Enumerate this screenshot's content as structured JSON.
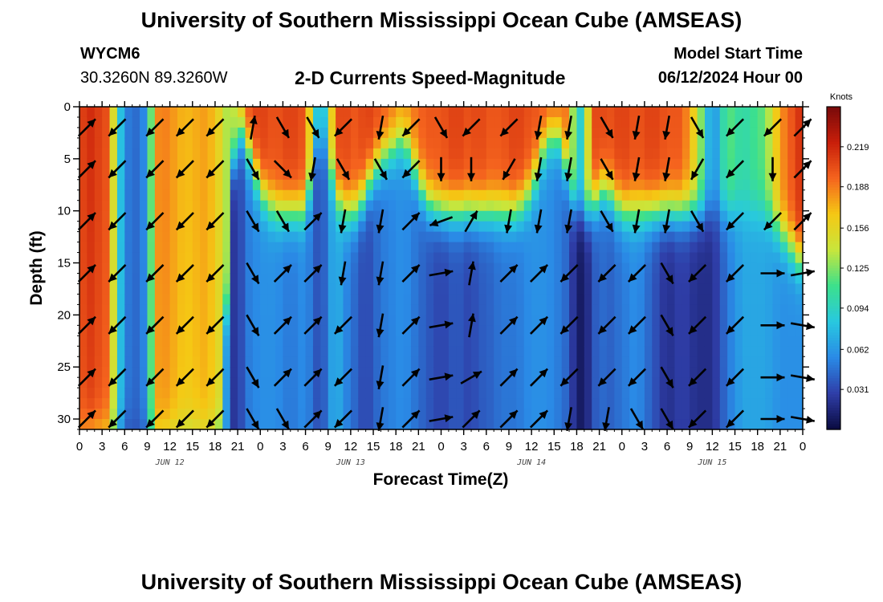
{
  "page": {
    "title_top": "University of Southern Mississippi Ocean Cube (AMSEAS)",
    "title_bottom": "University of Southern Mississippi Ocean Cube (AMSEAS)",
    "station_id": "WYCM6",
    "station_coords": "30.3260N  89.3260W",
    "plot_title": "2-D Currents Speed-Magnitude",
    "model_label": "Model Start Time",
    "model_time": "06/12/2024 Hour 00"
  },
  "chart_data": {
    "type": "heatmap",
    "title": "2-D Currents Speed-Magnitude",
    "xlabel": "Forecast Time(Z)",
    "ylabel": "Depth (ft)",
    "x_ticks": [
      0,
      3,
      6,
      9,
      12,
      15,
      18,
      21,
      24,
      27,
      30,
      33,
      36,
      39,
      42,
      45,
      48,
      51,
      54,
      57,
      60,
      63,
      66,
      69,
      72,
      75,
      78,
      81,
      84,
      87,
      90,
      93,
      96
    ],
    "x_tick_labels": [
      "0",
      "3",
      "6",
      "9",
      "12",
      "15",
      "18",
      "21",
      "0",
      "3",
      "6",
      "9",
      "12",
      "15",
      "18",
      "21",
      "0",
      "3",
      "6",
      "9",
      "12",
      "15",
      "18",
      "21",
      "0",
      "3",
      "6",
      "9",
      "12",
      "15",
      "18",
      "21",
      "0"
    ],
    "xlim": [
      0,
      96
    ],
    "y_ticks": [
      0,
      5,
      10,
      15,
      20,
      25,
      30
    ],
    "y_tick_labels": [
      "0",
      "5",
      "10",
      "15",
      "20",
      "25",
      "30"
    ],
    "ylim": [
      0,
      31
    ],
    "day_labels": [
      {
        "text": "JUN 12",
        "hour": 12
      },
      {
        "text": "JUN 13",
        "hour": 36
      },
      {
        "text": "JUN 14",
        "hour": 60
      },
      {
        "text": "JUN 15",
        "hour": 84
      }
    ],
    "colorbar": {
      "unit": "Knots",
      "min": 0,
      "max": 0.25,
      "ticks": [
        0.031,
        0.062,
        0.094,
        0.125,
        0.156,
        0.188,
        0.219
      ],
      "tick_labels": [
        "0.031",
        "0.062",
        "0.094",
        "0.125",
        "0.156",
        "0.188",
        "0.219"
      ],
      "colors": [
        "#0a0a40",
        "#2f3ea8",
        "#2a8ae6",
        "#28c8e0",
        "#3ce08c",
        "#c8e63c",
        "#f5c814",
        "#f5641e",
        "#c81e0a",
        "#780a0a"
      ]
    },
    "speed_profile": {
      "hours": [
        0,
        1,
        4,
        5,
        6,
        7,
        9,
        10,
        11,
        14,
        17,
        19,
        20,
        21,
        22,
        24,
        26,
        28,
        30,
        32,
        34,
        35,
        36,
        37,
        38,
        40,
        43,
        46,
        48,
        50,
        52,
        53,
        54,
        56,
        58,
        60,
        62,
        64,
        65,
        66,
        67,
        68,
        69,
        70,
        72,
        74,
        76,
        78,
        80,
        82,
        84,
        86,
        88,
        91,
        93,
        96
      ],
      "surface": [
        0.2,
        0.22,
        0.2,
        0.1,
        0.06,
        0.04,
        0.06,
        0.18,
        0.19,
        0.17,
        0.18,
        0.15,
        0.12,
        0.16,
        0.2,
        0.21,
        0.2,
        0.21,
        0.2,
        0.05,
        0.2,
        0.21,
        0.2,
        0.2,
        0.21,
        0.2,
        0.18,
        0.2,
        0.2,
        0.21,
        0.2,
        0.21,
        0.2,
        0.2,
        0.21,
        0.2,
        0.2,
        0.2,
        0.18,
        0.08,
        0.1,
        0.2,
        0.21,
        0.2,
        0.21,
        0.2,
        0.21,
        0.2,
        0.2,
        0.15,
        0.05,
        0.12,
        0.1,
        0.12,
        0.18,
        0.22
      ],
      "thermocline_ft": [
        31,
        31,
        31,
        31,
        31,
        31,
        31,
        31,
        31,
        31,
        31,
        31,
        8,
        2,
        3,
        8,
        10,
        10,
        10,
        2,
        8,
        10,
        10,
        10,
        8,
        5,
        3,
        9,
        10,
        10,
        10,
        10,
        10,
        10,
        10,
        8,
        3,
        3,
        8,
        10,
        10,
        10,
        8,
        8,
        10,
        10,
        10,
        10,
        10,
        10,
        10,
        10,
        10,
        10,
        12,
        15
      ],
      "deep": [
        0.18,
        0.16,
        0.15,
        0.07,
        0.03,
        0.03,
        0.04,
        0.16,
        0.15,
        0.13,
        0.14,
        0.1,
        0.03,
        0.02,
        0.05,
        0.06,
        0.06,
        0.05,
        0.06,
        0.03,
        0.08,
        0.06,
        0.05,
        0.04,
        0.03,
        0.05,
        0.06,
        0.04,
        0.03,
        0.04,
        0.03,
        0.04,
        0.04,
        0.05,
        0.05,
        0.06,
        0.06,
        0.05,
        0.04,
        0.01,
        0.01,
        0.03,
        0.05,
        0.04,
        0.05,
        0.06,
        0.04,
        0.02,
        0.03,
        0.02,
        0.02,
        0.05,
        0.07,
        0.07,
        0.06,
        0.06
      ]
    },
    "vector_rows_ft": [
      2,
      6,
      11,
      16,
      21,
      26,
      30
    ],
    "vector_times_hr": [
      1,
      5,
      10,
      14,
      18,
      23,
      27,
      31,
      35,
      40,
      44,
      48,
      52,
      57,
      61,
      65,
      70,
      74,
      78,
      82,
      87,
      92,
      96
    ],
    "vector_dirs_deg": [
      [
        45,
        225,
        225,
        225,
        225,
        80,
        300,
        300,
        225,
        260,
        225,
        300,
        225,
        225,
        260,
        260,
        300,
        260,
        260,
        300,
        225,
        225,
        45
      ],
      [
        45,
        225,
        225,
        225,
        225,
        300,
        315,
        260,
        300,
        300,
        225,
        270,
        270,
        240,
        260,
        260,
        300,
        260,
        260,
        240,
        225,
        270,
        45
      ],
      [
        45,
        225,
        225,
        225,
        225,
        300,
        300,
        45,
        260,
        260,
        45,
        200,
        60,
        260,
        260,
        260,
        300,
        260,
        260,
        300,
        225,
        225,
        45
      ],
      [
        45,
        225,
        225,
        225,
        225,
        300,
        45,
        45,
        260,
        260,
        45,
        10,
        80,
        45,
        45,
        225,
        225,
        225,
        300,
        225,
        225,
        0,
        10
      ],
      [
        45,
        225,
        225,
        225,
        225,
        300,
        45,
        45,
        225,
        260,
        45,
        10,
        80,
        45,
        45,
        225,
        225,
        225,
        300,
        225,
        225,
        0,
        350
      ],
      [
        45,
        225,
        225,
        225,
        225,
        300,
        45,
        45,
        225,
        260,
        45,
        10,
        30,
        45,
        45,
        225,
        225,
        225,
        300,
        225,
        225,
        0,
        350
      ],
      [
        45,
        225,
        225,
        225,
        225,
        300,
        300,
        45,
        225,
        260,
        45,
        10,
        45,
        45,
        45,
        260,
        260,
        300,
        300,
        225,
        225,
        0,
        350
      ]
    ]
  }
}
